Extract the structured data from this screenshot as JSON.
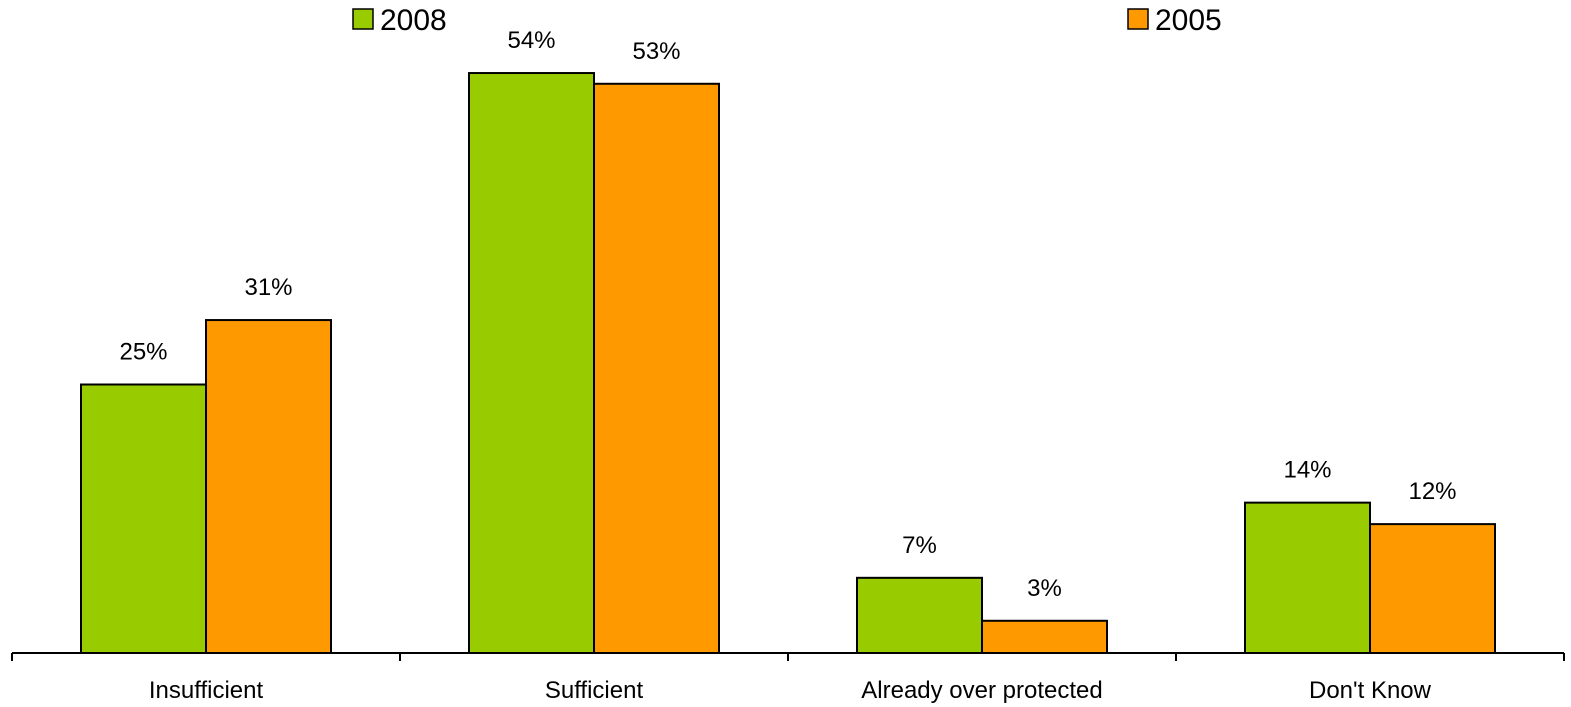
{
  "chart_data": {
    "type": "bar",
    "categories": [
      "Insufficient",
      "Sufficient",
      "Already over protected",
      "Don't Know"
    ],
    "series": [
      {
        "name": "2008",
        "values": [
          25,
          54,
          7,
          14
        ],
        "labels": [
          "25%",
          "54%",
          "7%",
          "14%"
        ],
        "color": "#99CC00"
      },
      {
        "name": "2005",
        "values": [
          31,
          53,
          3,
          12
        ],
        "labels": [
          "31%",
          "53%",
          "3%",
          "12%"
        ],
        "color": "#FF9900"
      }
    ],
    "ylim": [
      0,
      55
    ],
    "grid": false,
    "legend_position": "top"
  }
}
